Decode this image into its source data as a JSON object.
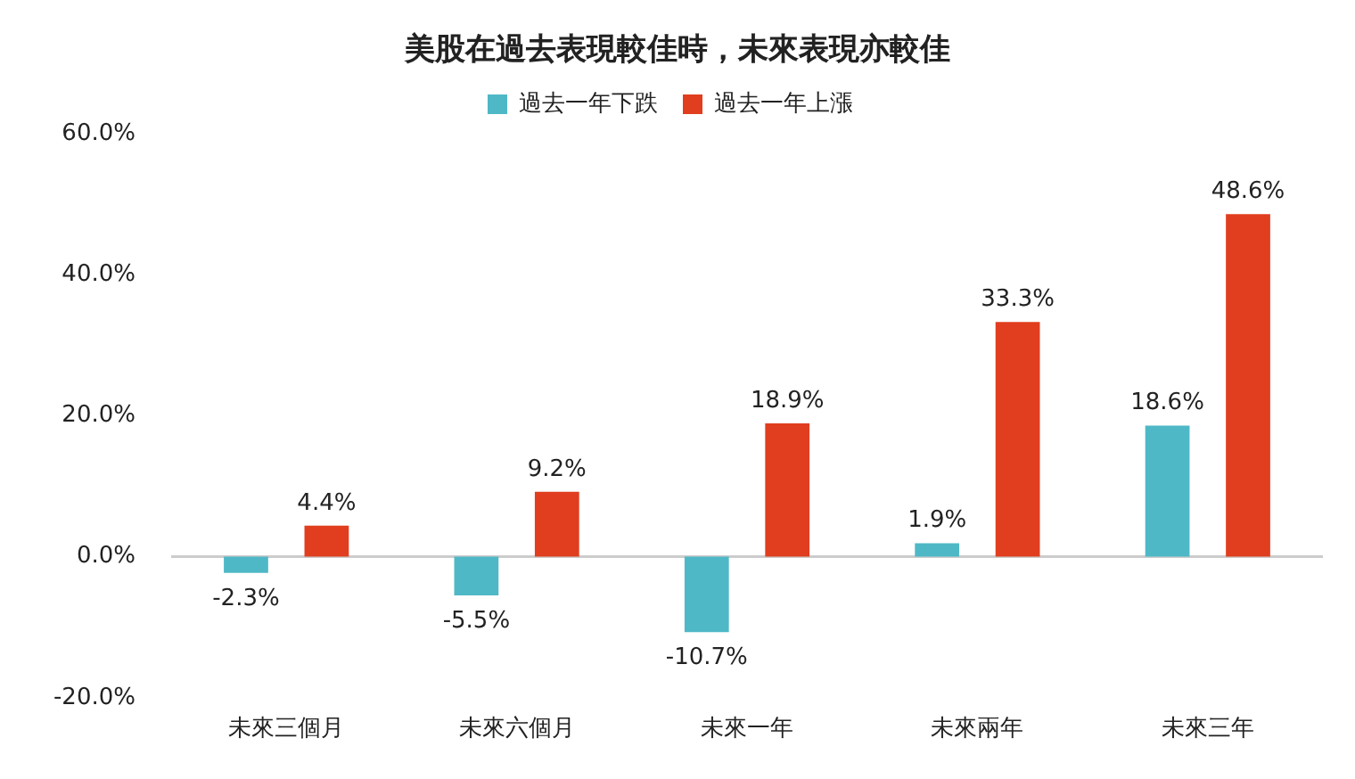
{
  "chart_data": {
    "type": "bar",
    "title": "美股在過去表現較佳時，未來表現亦較佳",
    "categories": [
      "未來三個月",
      "未來六個月",
      "未來一年",
      "未來兩年",
      "未來三年"
    ],
    "series": [
      {
        "name": "過去一年下跌",
        "color": "#4fb8c6",
        "values": [
          -2.3,
          -5.5,
          -10.7,
          1.9,
          18.6
        ],
        "value_labels": [
          "-2.3%",
          "-5.5%",
          "-10.7%",
          "1.9%",
          "18.6%"
        ]
      },
      {
        "name": "過去一年上漲",
        "color": "#e03e1f",
        "values": [
          4.4,
          9.2,
          18.9,
          33.3,
          48.6
        ],
        "value_labels": [
          "4.4%",
          "9.2%",
          "18.9%",
          "33.3%",
          "48.6%"
        ]
      }
    ],
    "ylim": [
      -20,
      60
    ],
    "yticks": [
      {
        "value": -20,
        "label": "-20.0%"
      },
      {
        "value": 0,
        "label": "0.0%"
      },
      {
        "value": 20,
        "label": "20.0%"
      },
      {
        "value": 40,
        "label": "40.0%"
      },
      {
        "value": 60,
        "label": "60.0%"
      }
    ],
    "ref_lines": [
      {
        "axis": "y",
        "value": 0,
        "color": "#cccccc"
      }
    ],
    "grid": false,
    "legend": "top"
  }
}
